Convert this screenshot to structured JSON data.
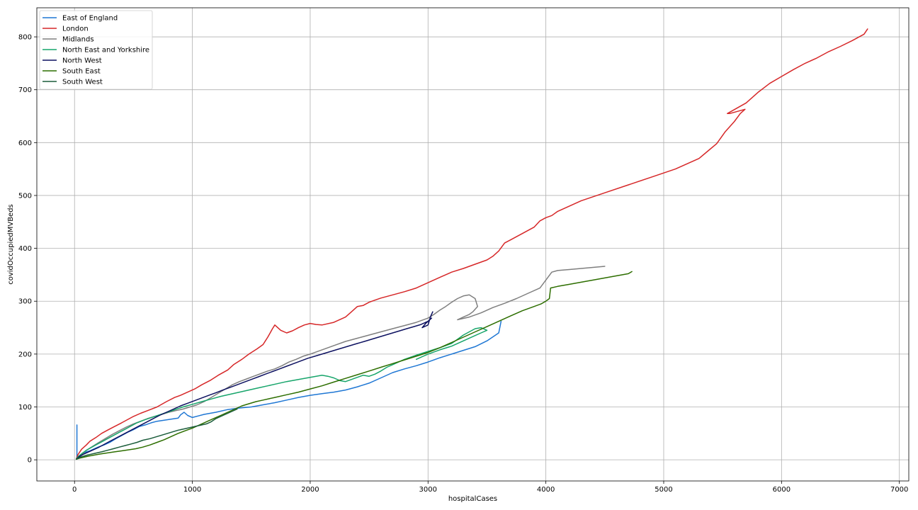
{
  "chart_data": {
    "type": "line",
    "title": "",
    "xlabel": "hospitalCases",
    "ylabel": "covidOccupiedMVBeds",
    "xlim": [
      -320,
      7080
    ],
    "ylim": [
      -40,
      855
    ],
    "xticks": [
      0,
      1000,
      2000,
      3000,
      4000,
      5000,
      6000,
      7000
    ],
    "yticks": [
      0,
      100,
      200,
      300,
      400,
      500,
      600,
      700,
      800
    ],
    "grid": true,
    "legend_position": "top-left",
    "series": [
      {
        "name": "East of England",
        "color": "#1f77d4",
        "x": [
          20,
          20,
          25,
          40,
          60,
          80,
          100,
          130,
          160,
          200,
          250,
          300,
          350,
          400,
          450,
          500,
          550,
          600,
          650,
          700,
          760,
          820,
          880,
          900,
          930,
          960,
          1000,
          1050,
          1100,
          1200,
          1300,
          1400,
          1500,
          1600,
          1700,
          1800,
          1900,
          2000,
          2100,
          2200,
          2300,
          2350,
          2400,
          2500,
          2600,
          2700,
          2800,
          2900,
          3000,
          3100,
          3200,
          3300,
          3400,
          3500,
          3600,
          3620
        ],
        "y": [
          66,
          5,
          3,
          6,
          10,
          13,
          15,
          17,
          20,
          24,
          28,
          33,
          40,
          46,
          52,
          57,
          63,
          66,
          70,
          73,
          75,
          77,
          79,
          85,
          90,
          84,
          80,
          83,
          86,
          90,
          95,
          98,
          100,
          104,
          108,
          113,
          118,
          122,
          125,
          128,
          132,
          135,
          138,
          145,
          155,
          165,
          172,
          178,
          185,
          193,
          200,
          207,
          214,
          225,
          240,
          262
        ]
      },
      {
        "name": "London",
        "color": "#d62728",
        "x": [
          15,
          30,
          60,
          100,
          130,
          180,
          230,
          280,
          330,
          400,
          450,
          500,
          560,
          620,
          700,
          780,
          850,
          900,
          960,
          1020,
          1080,
          1150,
          1220,
          1300,
          1350,
          1420,
          1480,
          1550,
          1600,
          1620,
          1640,
          1660,
          1680,
          1700,
          1750,
          1800,
          1850,
          1900,
          1950,
          2000,
          2050,
          2100,
          2200,
          2300,
          2350,
          2400,
          2450,
          2500,
          2550,
          2600,
          2700,
          2800,
          2900,
          3000,
          3100,
          3200,
          3300,
          3400,
          3500,
          3550,
          3600,
          3650,
          3700,
          3800,
          3900,
          3950,
          4000,
          4050,
          4100,
          4200,
          4300,
          4500,
          4700,
          4900,
          5100,
          5300,
          5380,
          5450,
          5520,
          5600,
          5650,
          5690,
          5560,
          5540,
          5700,
          5800,
          5900,
          6000,
          6100,
          6200,
          6300,
          6400,
          6500,
          6600,
          6700,
          6730
        ],
        "y": [
          2,
          10,
          20,
          28,
          35,
          42,
          50,
          56,
          62,
          70,
          76,
          82,
          88,
          93,
          100,
          110,
          118,
          122,
          128,
          134,
          142,
          150,
          160,
          170,
          180,
          190,
          200,
          210,
          218,
          225,
          232,
          240,
          248,
          255,
          245,
          240,
          244,
          250,
          255,
          258,
          256,
          255,
          260,
          270,
          280,
          290,
          292,
          298,
          302,
          306,
          312,
          318,
          325,
          335,
          345,
          355,
          362,
          370,
          378,
          385,
          395,
          410,
          416,
          428,
          440,
          452,
          458,
          462,
          470,
          480,
          490,
          505,
          520,
          535,
          550,
          570,
          585,
          598,
          620,
          640,
          655,
          663,
          655,
          655,
          675,
          695,
          712,
          725,
          738,
          750,
          760,
          772,
          782,
          793,
          805,
          815
        ]
      },
      {
        "name": "Midlands",
        "color": "#7f7f7f",
        "x": [
          20,
          40,
          70,
          100,
          150,
          200,
          260,
          320,
          380,
          440,
          500,
          560,
          620,
          680,
          740,
          800,
          860,
          920,
          980,
          1040,
          1100,
          1160,
          1220,
          1280,
          1340,
          1400,
          1460,
          1520,
          1580,
          1640,
          1700,
          1760,
          1820,
          1880,
          1940,
          2000,
          2100,
          2200,
          2300,
          2400,
          2500,
          2600,
          2700,
          2800,
          2900,
          3000,
          3050,
          3100,
          3150,
          3200,
          3250,
          3300,
          3350,
          3400,
          3420,
          3380,
          3350,
          3300,
          3250,
          3350,
          3450,
          3550,
          3650,
          3750,
          3850,
          3950,
          4000,
          4050,
          4100,
          4200,
          4300,
          4400,
          4500
        ],
        "y": [
          2,
          6,
          12,
          18,
          25,
          32,
          40,
          48,
          55,
          62,
          68,
          73,
          78,
          82,
          86,
          90,
          93,
          96,
          100,
          104,
          110,
          118,
          126,
          134,
          142,
          148,
          153,
          158,
          163,
          168,
          172,
          178,
          185,
          190,
          196,
          200,
          208,
          216,
          224,
          230,
          236,
          242,
          248,
          254,
          260,
          268,
          275,
          283,
          290,
          298,
          305,
          310,
          312,
          305,
          290,
          280,
          275,
          270,
          265,
          270,
          278,
          288,
          296,
          305,
          315,
          325,
          340,
          355,
          358,
          360,
          362,
          364,
          366
        ]
      },
      {
        "name": "North East and Yorkshire",
        "color": "#17a56b",
        "x": [
          18,
          40,
          70,
          100,
          140,
          180,
          230,
          280,
          330,
          380,
          430,
          480,
          530,
          600,
          680,
          760,
          840,
          920,
          1000,
          1080,
          1160,
          1240,
          1320,
          1400,
          1480,
          1560,
          1640,
          1720,
          1800,
          1900,
          2000,
          2100,
          2150,
          2200,
          2250,
          2300,
          2350,
          2400,
          2450,
          2500,
          2550,
          2600,
          2650,
          2700,
          2800,
          2900,
          3000,
          3100,
          3200,
          3250,
          3300,
          3350,
          3400,
          3450,
          3500,
          3450,
          3400,
          3300,
          3200,
          3100,
          3000,
          2950,
          2900
        ],
        "y": [
          3,
          8,
          13,
          18,
          23,
          28,
          34,
          40,
          46,
          52,
          58,
          64,
          70,
          76,
          82,
          88,
          94,
          100,
          105,
          110,
          115,
          120,
          124,
          128,
          132,
          136,
          140,
          144,
          148,
          152,
          156,
          160,
          158,
          155,
          150,
          148,
          152,
          156,
          160,
          158,
          162,
          168,
          175,
          180,
          190,
          198,
          205,
          212,
          220,
          228,
          236,
          242,
          248,
          250,
          245,
          240,
          235,
          225,
          215,
          208,
          200,
          195,
          190
        ]
      },
      {
        "name": "North West",
        "color": "#0d1160",
        "x": [
          20,
          40,
          70,
          110,
          150,
          200,
          250,
          300,
          360,
          420,
          480,
          540,
          600,
          660,
          720,
          780,
          840,
          900,
          960,
          1020,
          1080,
          1140,
          1200,
          1260,
          1320,
          1380,
          1440,
          1500,
          1560,
          1620,
          1680,
          1740,
          1800,
          1860,
          1920,
          1980,
          2040,
          2100,
          2160,
          2220,
          2280,
          2340,
          2400,
          2460,
          2520,
          2580,
          2640,
          2700,
          2760,
          2820,
          2880,
          2940,
          3000,
          3030,
          2980,
          2950,
          3000,
          3020,
          3040
        ],
        "y": [
          2,
          6,
          10,
          14,
          18,
          23,
          29,
          35,
          42,
          49,
          56,
          63,
          70,
          77,
          84,
          90,
          96,
          102,
          107,
          112,
          117,
          122,
          127,
          132,
          137,
          142,
          147,
          152,
          157,
          162,
          167,
          172,
          177,
          182,
          187,
          192,
          196,
          200,
          204,
          208,
          212,
          216,
          220,
          224,
          228,
          232,
          236,
          240,
          244,
          248,
          252,
          256,
          262,
          268,
          258,
          250,
          255,
          270,
          280
        ]
      },
      {
        "name": "South East",
        "color": "#2d6e00",
        "x": [
          15,
          40,
          80,
          120,
          170,
          220,
          280,
          340,
          400,
          460,
          520,
          580,
          640,
          700,
          760,
          820,
          880,
          940,
          1000,
          1060,
          1120,
          1180,
          1240,
          1300,
          1360,
          1420,
          1480,
          1540,
          1600,
          1700,
          1800,
          1900,
          2000,
          2100,
          2200,
          2300,
          2400,
          2500,
          2600,
          2700,
          2800,
          2900,
          3000,
          3100,
          3200,
          3300,
          3400,
          3500,
          3600,
          3700,
          3800,
          3900,
          3960,
          4000,
          4030,
          4040,
          4100,
          4200,
          4300,
          4400,
          4500,
          4600,
          4700,
          4730
        ],
        "y": [
          1,
          3,
          5,
          7,
          9,
          11,
          13,
          15,
          17,
          19,
          21,
          24,
          28,
          33,
          38,
          44,
          50,
          55,
          60,
          66,
          72,
          78,
          84,
          90,
          96,
          102,
          106,
          110,
          113,
          118,
          123,
          128,
          134,
          140,
          147,
          154,
          161,
          168,
          175,
          182,
          189,
          196,
          203,
          212,
          222,
          232,
          242,
          252,
          262,
          272,
          282,
          290,
          295,
          300,
          305,
          325,
          328,
          332,
          336,
          340,
          344,
          348,
          352,
          356
        ]
      },
      {
        "name": "South West",
        "color": "#1a5c3a",
        "x": [
          15,
          30,
          50,
          80,
          110,
          150,
          190,
          230,
          280,
          330,
          380,
          430,
          480,
          530,
          580,
          640,
          700,
          760,
          820,
          880,
          920,
          960,
          1000,
          1040,
          1080,
          1120,
          1160,
          1200,
          1260,
          1320,
          1380
        ],
        "y": [
          1,
          3,
          5,
          7,
          9,
          11,
          13,
          15,
          18,
          21,
          24,
          27,
          30,
          33,
          37,
          40,
          44,
          48,
          52,
          56,
          58,
          60,
          62,
          64,
          66,
          68,
          72,
          78,
          84,
          90,
          96
        ]
      }
    ]
  }
}
